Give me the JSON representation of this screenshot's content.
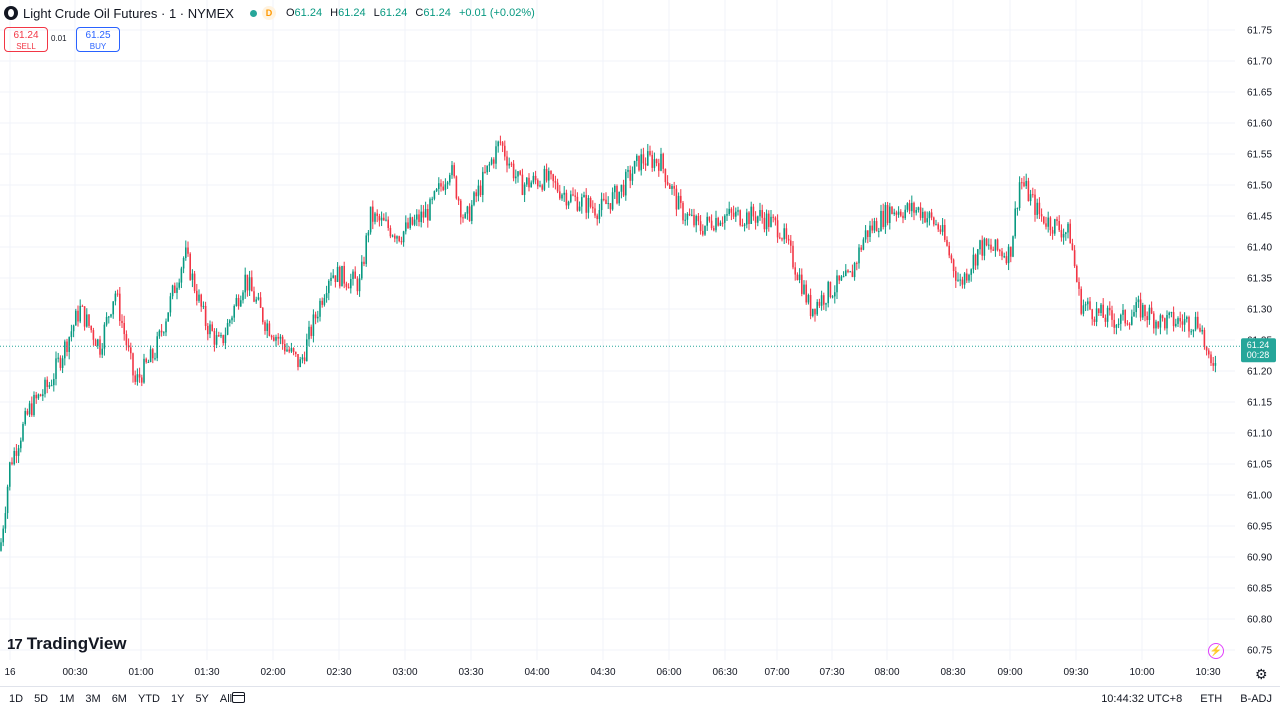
{
  "header": {
    "title": "Light Crude Oil Futures · 1 · NYMEX",
    "mode": "D",
    "ohlc": {
      "o_label": "O",
      "o": "61.24",
      "h_label": "H",
      "h": "61.24",
      "l_label": "L",
      "l": "61.24",
      "c_label": "C",
      "c": "61.24",
      "change": "+0.01 (+0.02%)"
    }
  },
  "trade": {
    "sell_price": "61.24",
    "sell_label": "SELL",
    "spread": "0.01",
    "buy_price": "61.25",
    "buy_label": "BUY"
  },
  "branding": {
    "logo_text": "TradingView"
  },
  "bottom_bar": {
    "ranges": [
      "1D",
      "5D",
      "1M",
      "3M",
      "6M",
      "YTD",
      "1Y",
      "5Y",
      "All"
    ],
    "time": "10:44:32 UTC+8",
    "session": "ETH",
    "adjust": "B-ADJ"
  },
  "colors": {
    "up": "#089981",
    "down": "#f23645",
    "grid": "#f0f3fa",
    "price_line": "#26a69a"
  },
  "chart_data": {
    "type": "candlestick",
    "ylim": [
      60.75,
      61.75
    ],
    "y_ticks": [
      "61.75",
      "61.70",
      "61.65",
      "61.60",
      "61.55",
      "61.50",
      "61.45",
      "61.40",
      "61.35",
      "61.30",
      "61.25",
      "61.20",
      "61.15",
      "61.10",
      "61.05",
      "61.00",
      "60.95",
      "60.90",
      "60.85",
      "60.80",
      "60.75"
    ],
    "x_ticks": [
      "16",
      "00:30",
      "01:00",
      "01:30",
      "02:00",
      "02:30",
      "03:00",
      "03:30",
      "04:00",
      "04:30",
      "06:00",
      "06:30",
      "07:00",
      "07:30",
      "08:00",
      "08:30",
      "09:00",
      "09:30",
      "10:00",
      "10:30"
    ],
    "last_price": "61.24",
    "countdown": "00:28",
    "trend": [
      [
        0,
        60.91
      ],
      [
        10,
        61.05
      ],
      [
        30,
        61.14
      ],
      [
        50,
        61.18
      ],
      [
        80,
        61.3
      ],
      [
        100,
        61.24
      ],
      [
        115,
        61.33
      ],
      [
        135,
        61.18
      ],
      [
        155,
        61.23
      ],
      [
        185,
        61.39
      ],
      [
        205,
        61.28
      ],
      [
        220,
        61.24
      ],
      [
        245,
        61.35
      ],
      [
        265,
        61.28
      ],
      [
        300,
        61.21
      ],
      [
        330,
        61.36
      ],
      [
        360,
        61.34
      ],
      [
        370,
        61.45
      ],
      [
        400,
        61.42
      ],
      [
        430,
        61.46
      ],
      [
        450,
        61.53
      ],
      [
        465,
        61.44
      ],
      [
        500,
        61.57
      ],
      [
        520,
        61.5
      ],
      [
        545,
        61.51
      ],
      [
        570,
        61.48
      ],
      [
        600,
        61.46
      ],
      [
        620,
        61.49
      ],
      [
        640,
        61.54
      ],
      [
        660,
        61.54
      ],
      [
        680,
        61.46
      ],
      [
        700,
        61.43
      ],
      [
        720,
        61.45
      ],
      [
        760,
        61.45
      ],
      [
        780,
        61.43
      ],
      [
        800,
        61.35
      ],
      [
        810,
        61.3
      ],
      [
        830,
        61.33
      ],
      [
        850,
        61.35
      ],
      [
        865,
        61.42
      ],
      [
        890,
        61.46
      ],
      [
        920,
        61.46
      ],
      [
        940,
        61.43
      ],
      [
        960,
        61.34
      ],
      [
        980,
        61.4
      ],
      [
        1010,
        61.39
      ],
      [
        1020,
        61.51
      ],
      [
        1040,
        61.45
      ],
      [
        1070,
        61.42
      ],
      [
        1080,
        61.31
      ],
      [
        1100,
        61.29
      ],
      [
        1120,
        61.28
      ],
      [
        1140,
        61.3
      ],
      [
        1160,
        61.28
      ],
      [
        1180,
        61.28
      ],
      [
        1200,
        61.28
      ],
      [
        1210,
        61.2
      ],
      [
        1216,
        61.23
      ]
    ]
  }
}
